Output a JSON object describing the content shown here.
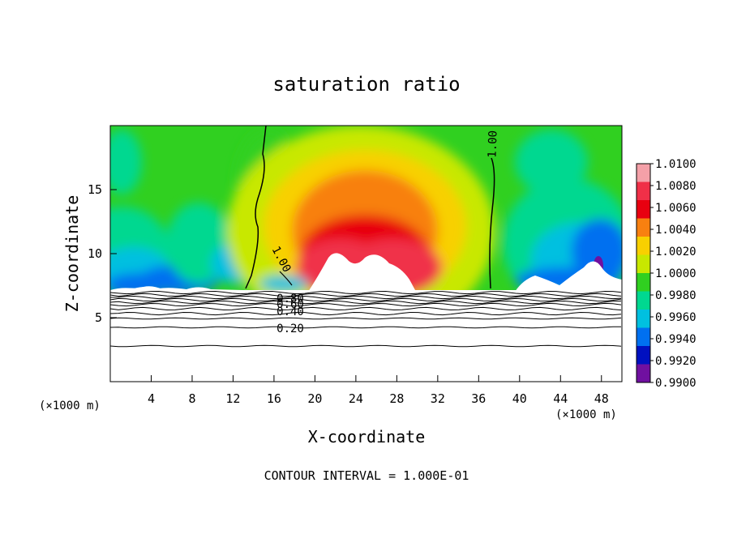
{
  "chart_data": {
    "type": "heatmap",
    "title": "saturation ratio",
    "xlabel": "X-coordinate",
    "ylabel": "Z-coordinate",
    "x_unit": "(×1000 m)",
    "xlim": [
      0,
      50
    ],
    "ylim": [
      0,
      20
    ],
    "x_ticks": [
      4,
      8,
      12,
      16,
      20,
      24,
      28,
      32,
      36,
      40,
      44,
      48
    ],
    "y_ticks": [
      5,
      10,
      15
    ],
    "colorbar": {
      "levels": [
        "1.0100",
        "1.0080",
        "1.0060",
        "1.0040",
        "1.0020",
        "1.0000",
        "0.9980",
        "0.9960",
        "0.9940",
        "0.9920",
        "0.9900"
      ],
      "colors": [
        "#f4a0a8",
        "#f03048",
        "#e80010",
        "#f88010",
        "#f8d000",
        "#c8e800",
        "#30d020",
        "#00d890",
        "#00c0e0",
        "#0070f0",
        "#0010c0",
        "#7010a0"
      ]
    },
    "contour_labels": [
      "1.00",
      "1.00",
      "0.80",
      "0.60",
      "0.40",
      "0.20"
    ],
    "footer": "CONTOUR INTERVAL = 1.000E-01"
  }
}
